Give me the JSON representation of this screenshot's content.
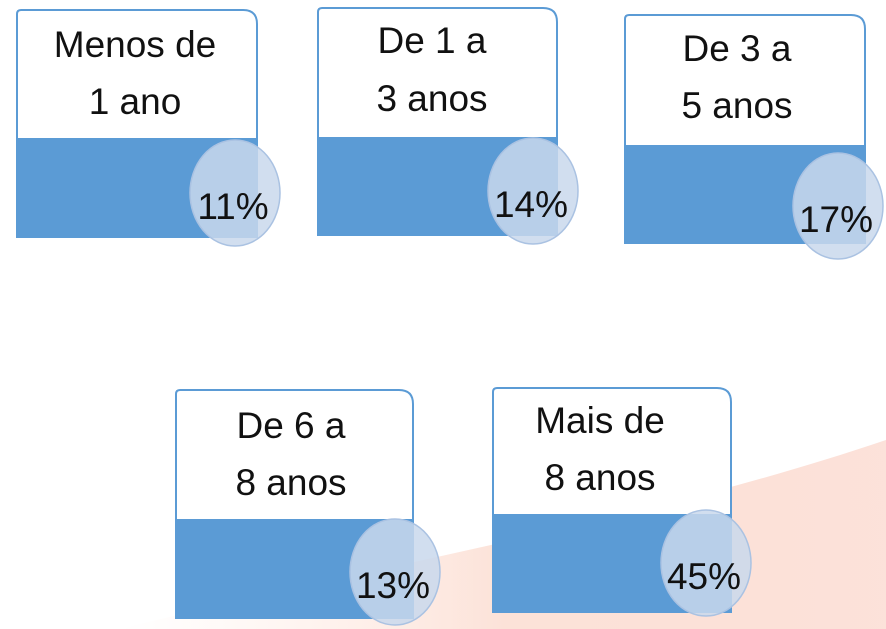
{
  "nodes": [
    {
      "label": [
        "Menos de",
        "1 ano"
      ],
      "value": "11%"
    },
    {
      "label": [
        "De 1 a",
        "3 anos"
      ],
      "value": "14%"
    },
    {
      "label": [
        "De 3 a",
        "5 anos"
      ],
      "value": "17%"
    },
    {
      "label": [
        "De 6 a",
        "8 anos"
      ],
      "value": "13%"
    },
    {
      "label": [
        "Mais de",
        "8 anos"
      ],
      "value": "45%"
    }
  ]
}
